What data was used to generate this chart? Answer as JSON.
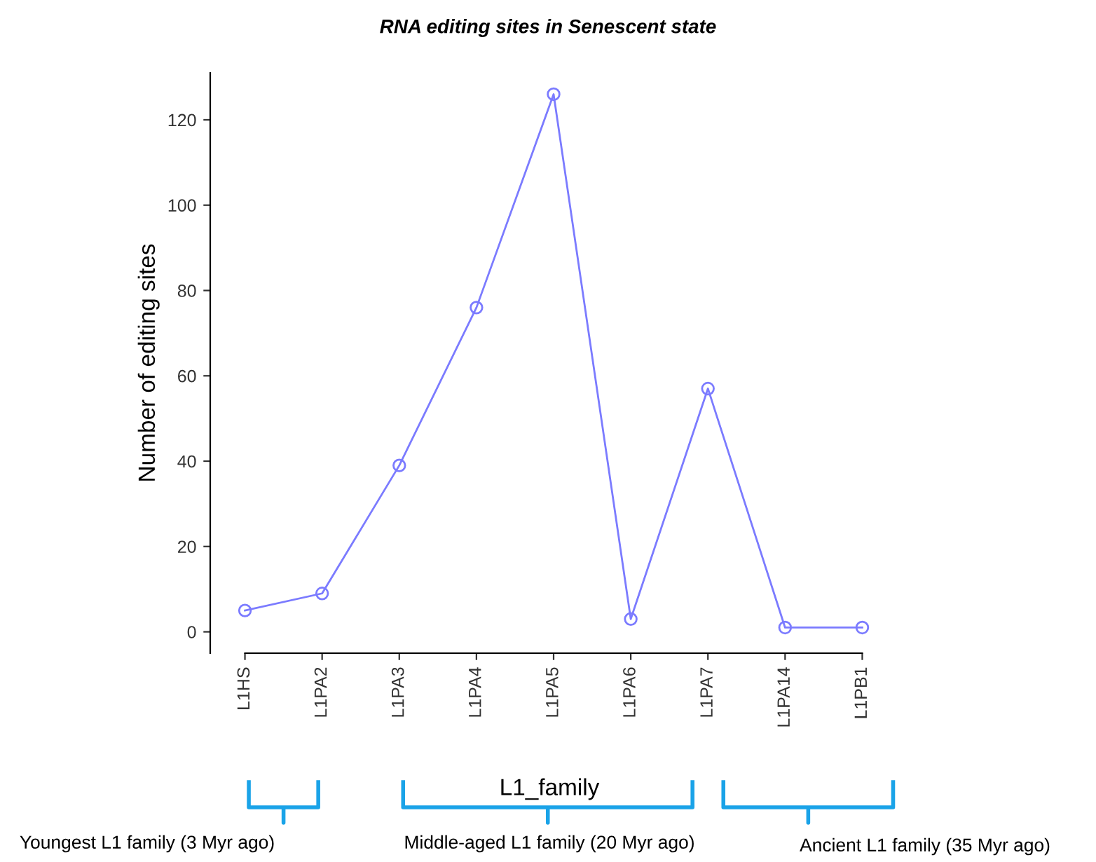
{
  "chart_data": {
    "type": "line",
    "title": "RNA editing sites in Senescent state",
    "xlabel": "L1_family",
    "ylabel": "Number of editing sites",
    "categories": [
      "L1HS",
      "L1PA2",
      "L1PA3",
      "L1PA4",
      "L1PA5",
      "L1PA6",
      "L1PA7",
      "L1PA14",
      "L1PB1"
    ],
    "series": [
      {
        "color": "#7b7bff",
        "values": [
          5,
          9,
          39,
          76,
          126,
          3,
          57,
          1,
          1
        ]
      }
    ],
    "ylim": [
      -5,
      131
    ],
    "yticks": [
      0,
      20,
      40,
      60,
      80,
      100,
      120
    ],
    "marker": "circle",
    "line_style": "solid",
    "grid": false,
    "legend": false,
    "annotations": [
      "Youngest L1 family (3 Myr ago)",
      "Middle-aged L1 family (20 Myr ago)",
      "Ancient L1 family (35 Myr ago)"
    ]
  }
}
